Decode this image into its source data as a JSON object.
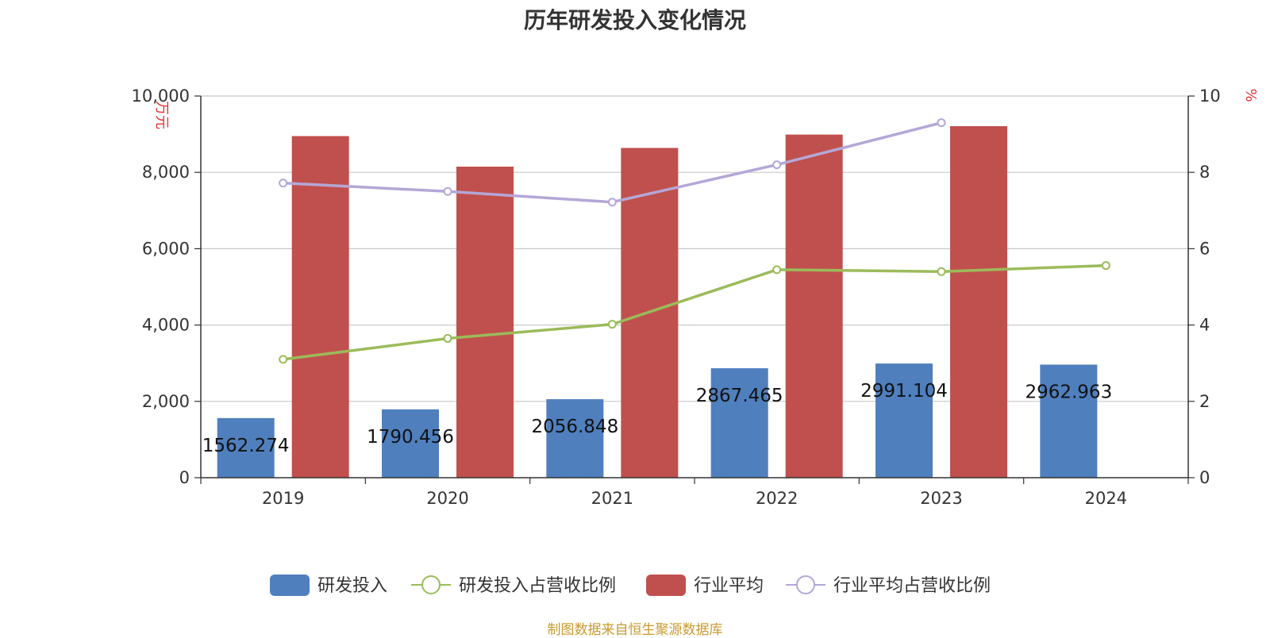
{
  "chart_data": {
    "type": "bar",
    "title": "历年研发投入变化情况",
    "categories": [
      "2019",
      "2020",
      "2021",
      "2022",
      "2023",
      "2024"
    ],
    "y_left": {
      "unit": "万元",
      "ylim": [
        0,
        10000
      ],
      "ticks": [
        0,
        2000,
        4000,
        6000,
        8000,
        10000
      ],
      "tick_labels": [
        "0",
        "2,000",
        "4,000",
        "6,000",
        "8,000",
        "10,000"
      ]
    },
    "y_right": {
      "unit": "%",
      "ylim": [
        0,
        10
      ],
      "ticks": [
        0,
        2,
        4,
        6,
        8,
        10
      ],
      "tick_labels": [
        "0",
        "2",
        "4",
        "6",
        "8",
        "10"
      ]
    },
    "series": [
      {
        "name": "研发投入",
        "type": "bar",
        "axis": "left",
        "color": "#4f7fbd",
        "values": [
          1562.274,
          1790.456,
          2056.848,
          2867.465,
          2991.104,
          2962.963
        ],
        "labels": [
          "1562.274",
          "1790.456",
          "2056.848",
          "2867.465",
          "2991.104",
          "2962.963"
        ]
      },
      {
        "name": "研发投入占营收比例",
        "type": "line",
        "axis": "right",
        "color": "#9bbb59",
        "values": [
          3.1,
          3.65,
          4.02,
          5.45,
          5.4,
          5.56
        ]
      },
      {
        "name": "行业平均",
        "type": "bar",
        "axis": "left",
        "color": "#c0504d",
        "values": [
          8950,
          8150,
          8640,
          8990,
          9210,
          null
        ]
      },
      {
        "name": "行业平均占营收比例",
        "type": "line",
        "axis": "right",
        "color": "#b4a7d6",
        "values": [
          7.72,
          7.5,
          7.22,
          8.2,
          9.3,
          null
        ]
      }
    ],
    "legend_position": "bottom",
    "grid": true
  },
  "source_note": "制图数据来自恒生聚源数据库"
}
